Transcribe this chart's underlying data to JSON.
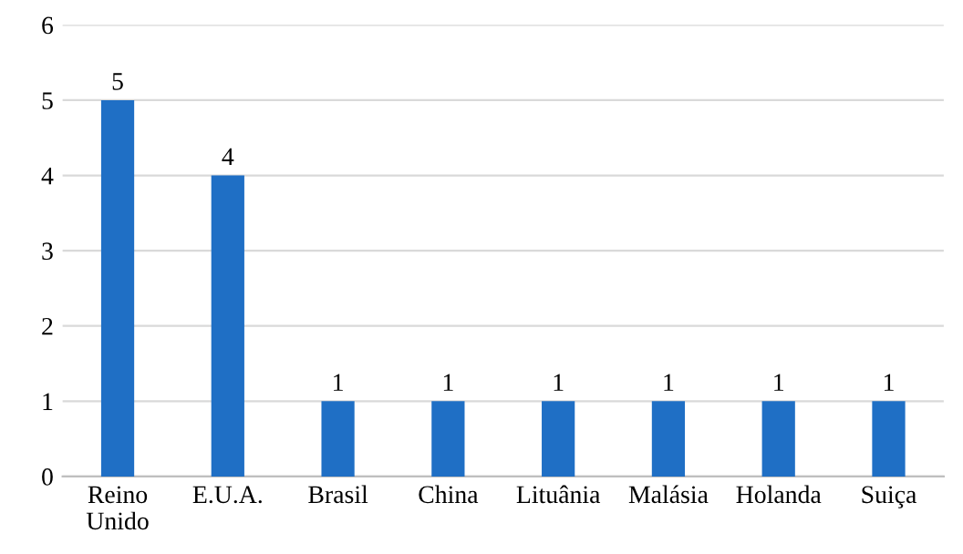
{
  "chart_data": {
    "type": "bar",
    "categories": [
      "Reino\nUnido",
      "E.U.A.",
      "Brasil",
      "China",
      "Lituânia",
      "Malásia",
      "Holanda",
      "Suiça"
    ],
    "values": [
      5,
      4,
      1,
      1,
      1,
      1,
      1,
      1
    ],
    "color": "#1f6fc5",
    "ylim": [
      0,
      6
    ],
    "yticks": [
      0,
      1,
      2,
      3,
      4,
      5,
      6
    ],
    "grid": "y",
    "data_labels": true,
    "legend": false
  }
}
